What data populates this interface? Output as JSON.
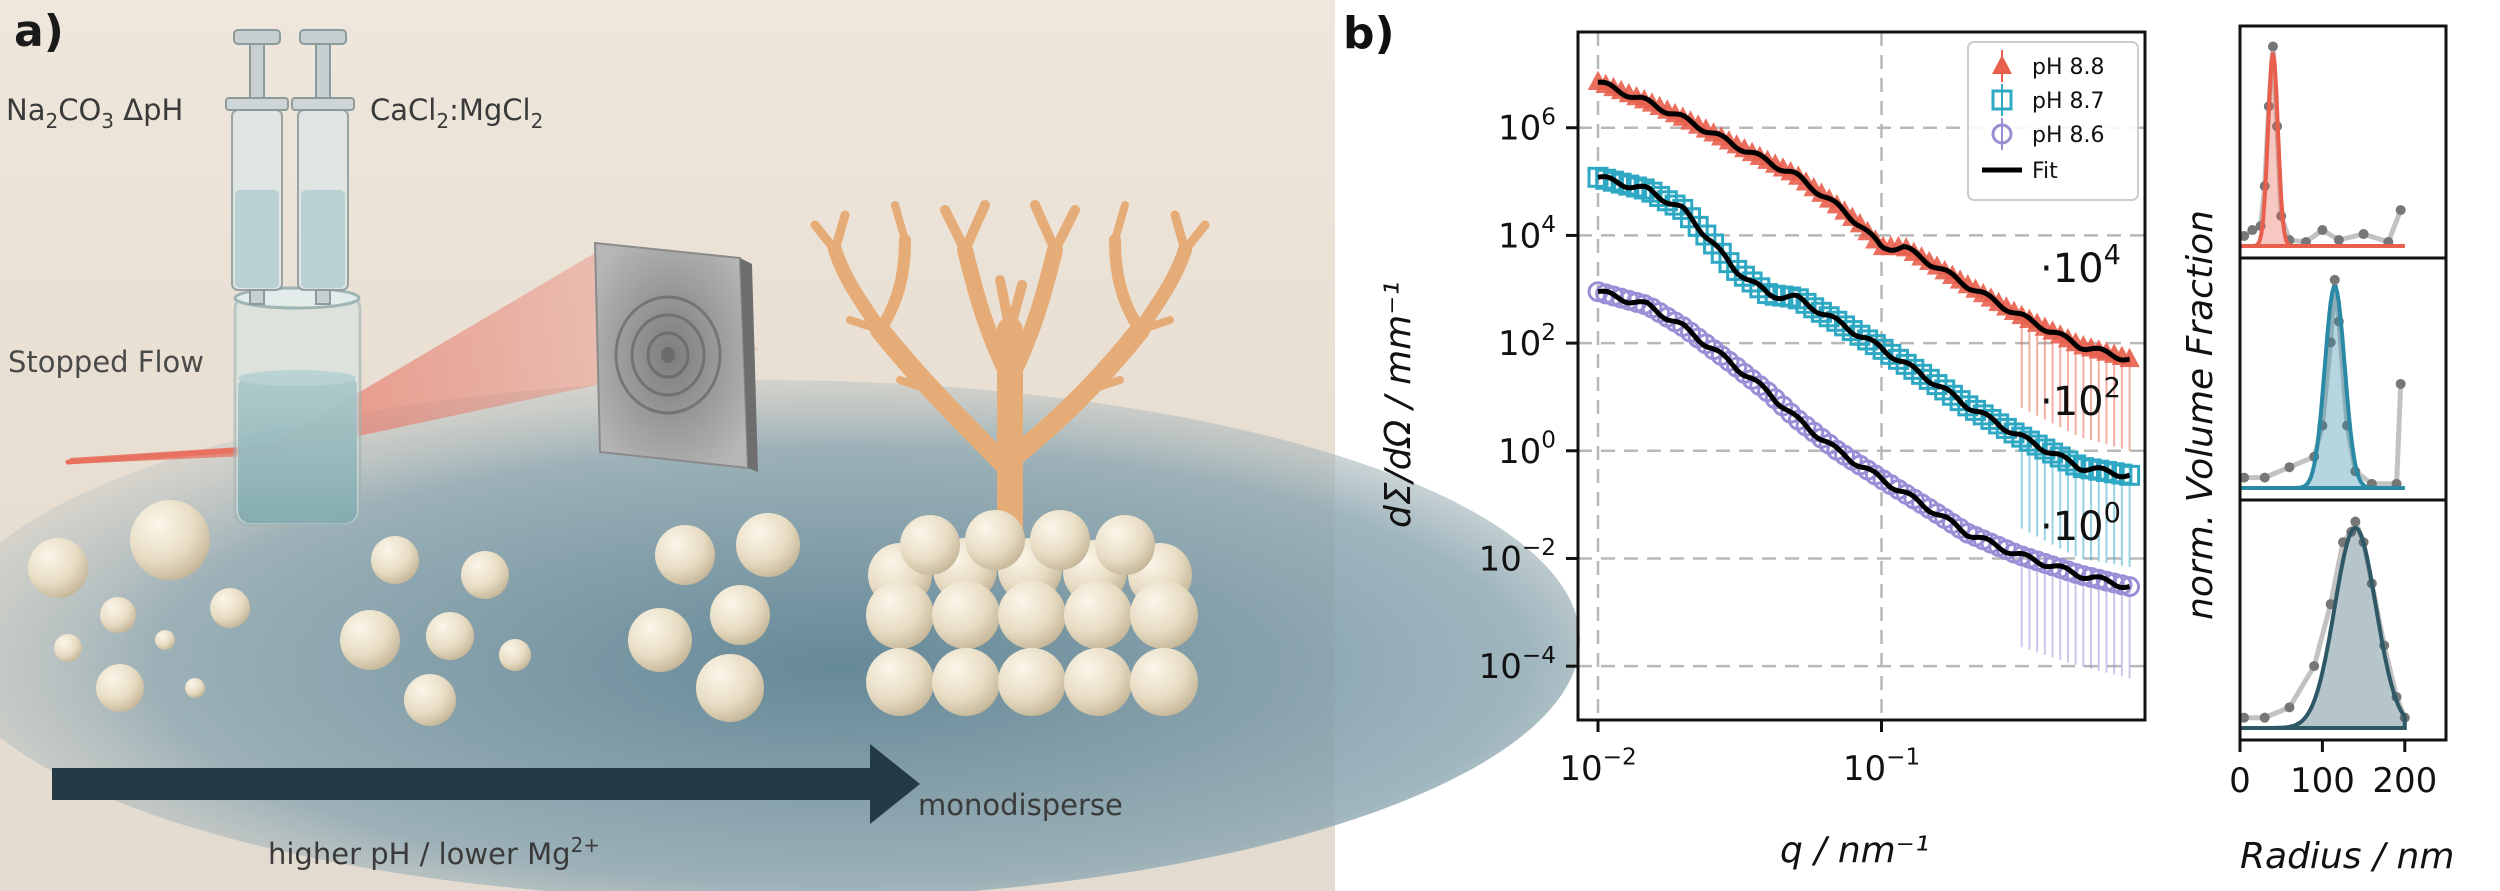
{
  "panel_a": {
    "label": "a)",
    "syringe_left": {
      "main": "Na",
      "sub1": "2",
      "mid": "CO",
      "sub2": "3",
      "tail": " ΔpH"
    },
    "syringe_right": {
      "main": "CaCl",
      "sub1": "2",
      "mid": ":MgCl",
      "sub2": "2"
    },
    "stopped_flow": "Stopped Flow",
    "arrow_label": {
      "text": "higher pH / lower Mg",
      "sup": "2+"
    },
    "end_label": "monodisperse",
    "colors": {
      "background": "#ede4da",
      "floor": "#5d8396",
      "arrow": "#243a44",
      "particle": "#e6dcc4",
      "coral": "#e8b07c",
      "beam": "#e8705f"
    }
  },
  "panel_b": {
    "label": "b)",
    "chart_data": [
      {
        "type": "line",
        "title": "",
        "xlabel": "q / nm⁻¹",
        "ylabel": "dΣ/dΩ / mm⁻¹",
        "xscale": "log",
        "yscale": "log",
        "xlim": [
          0.0085,
          0.85
        ],
        "ylim": [
          1e-05,
          60000000
        ],
        "grid": true,
        "legend_position": "top-right",
        "x_ticks": [
          {
            "base": "10",
            "exp": "−2",
            "value": 0.01
          },
          {
            "base": "10",
            "exp": "−1",
            "value": 0.1
          }
        ],
        "y_ticks": [
          {
            "base": "10",
            "exp": "6",
            "value": 1000000
          },
          {
            "base": "10",
            "exp": "4",
            "value": 10000
          },
          {
            "base": "10",
            "exp": "2",
            "value": 100
          },
          {
            "base": "10",
            "exp": "0",
            "value": 1
          },
          {
            "base": "10",
            "exp": "−2",
            "value": 0.01
          },
          {
            "base": "10",
            "exp": "−4",
            "value": 0.0001
          }
        ],
        "series": [
          {
            "name": "pH 8.8",
            "color": "#e8604d",
            "marker": "triangle",
            "scale": {
              "base": "·10",
              "exp": "4"
            },
            "points": [
              [
                0.01,
                7000000
              ],
              [
                0.015,
                3000000
              ],
              [
                0.02,
                1500000
              ],
              [
                0.03,
                500000
              ],
              [
                0.05,
                130000
              ],
              [
                0.07,
                35000
              ],
              [
                0.085,
                15000
              ],
              [
                0.1,
                6000
              ],
              [
                0.12,
                6000
              ],
              [
                0.15,
                3000
              ],
              [
                0.2,
                1200
              ],
              [
                0.3,
                350
              ],
              [
                0.5,
                90
              ],
              [
                0.75,
                50
              ]
            ]
          },
          {
            "name": "pH 8.7",
            "color": "#2fa8c4",
            "marker": "square",
            "scale": {
              "base": "·10",
              "exp": "2"
            },
            "points": [
              [
                0.01,
                120000
              ],
              [
                0.015,
                70000
              ],
              [
                0.02,
                30000
              ],
              [
                0.025,
                8000
              ],
              [
                0.03,
                2500
              ],
              [
                0.04,
                800
              ],
              [
                0.05,
                700
              ],
              [
                0.07,
                250
              ],
              [
                0.1,
                80
              ],
              [
                0.15,
                20
              ],
              [
                0.2,
                7
              ],
              [
                0.3,
                2
              ],
              [
                0.5,
                0.5
              ],
              [
                0.75,
                0.35
              ]
            ]
          },
          {
            "name": "pH 8.6",
            "color": "#9c8ed6",
            "marker": "circle",
            "scale": {
              "base": "·10",
              "exp": "0"
            },
            "points": [
              [
                0.01,
                900
              ],
              [
                0.015,
                500
              ],
              [
                0.02,
                200
              ],
              [
                0.03,
                40
              ],
              [
                0.04,
                12
              ],
              [
                0.05,
                4
              ],
              [
                0.07,
                1
              ],
              [
                0.1,
                0.3
              ],
              [
                0.15,
                0.08
              ],
              [
                0.2,
                0.03
              ],
              [
                0.3,
                0.012
              ],
              [
                0.5,
                0.005
              ],
              [
                0.75,
                0.003
              ]
            ]
          }
        ],
        "fit_label": "Fit"
      },
      {
        "type": "line",
        "xlabel": "Radius / nm",
        "ylabel": "norm. Volume Fraction",
        "xlim": [
          0,
          250
        ],
        "x_ticks": [
          0,
          100,
          200
        ],
        "panels": [
          {
            "name": "pH 8.8",
            "color": "#e8604d",
            "peak": 40,
            "width": 6,
            "points": [
              [
                5,
                0.05
              ],
              [
                15,
                0.08
              ],
              [
                25,
                0.1
              ],
              [
                30,
                0.3
              ],
              [
                35,
                0.7
              ],
              [
                40,
                1.0
              ],
              [
                45,
                0.6
              ],
              [
                50,
                0.15
              ],
              [
                60,
                0.03
              ],
              [
                80,
                0.02
              ],
              [
                100,
                0.08
              ],
              [
                120,
                0.03
              ],
              [
                150,
                0.06
              ],
              [
                180,
                0.02
              ],
              [
                195,
                0.18
              ]
            ]
          },
          {
            "name": "pH 8.7",
            "color": "#2a8aa6",
            "peak": 115,
            "width": 12,
            "points": [
              [
                5,
                0.05
              ],
              [
                30,
                0.05
              ],
              [
                60,
                0.1
              ],
              [
                90,
                0.15
              ],
              [
                100,
                0.3
              ],
              [
                110,
                0.7
              ],
              [
                115,
                1.0
              ],
              [
                120,
                0.8
              ],
              [
                130,
                0.3
              ],
              [
                140,
                0.08
              ],
              [
                160,
                0.02
              ],
              [
                190,
                0.02
              ],
              [
                195,
                0.5
              ]
            ]
          },
          {
            "name": "pH 8.6",
            "color": "#2f5866",
            "peak": 140,
            "width": 25,
            "points": [
              [
                5,
                0.05
              ],
              [
                30,
                0.05
              ],
              [
                60,
                0.1
              ],
              [
                90,
                0.3
              ],
              [
                110,
                0.6
              ],
              [
                125,
                0.9
              ],
              [
                135,
                0.95
              ],
              [
                140,
                1.0
              ],
              [
                150,
                0.9
              ],
              [
                160,
                0.7
              ],
              [
                175,
                0.4
              ],
              [
                190,
                0.15
              ],
              [
                200,
                0.05
              ]
            ]
          }
        ]
      }
    ]
  }
}
